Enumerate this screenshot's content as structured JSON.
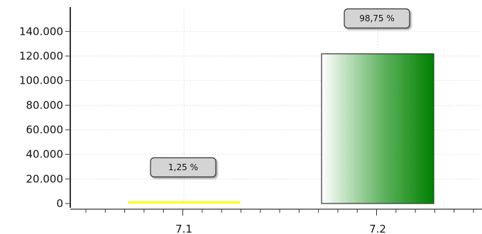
{
  "chart_data": {
    "type": "bar",
    "categories": [
      "7.1",
      "7.2"
    ],
    "values": [
      1530,
      121800
    ],
    "percent_labels": [
      "1,25 %",
      "98,75 %"
    ],
    "bar_colors": [
      "#ffff00",
      "#0a7a0a"
    ],
    "y_ticks": [
      "0",
      "20.000",
      "40.000",
      "60.000",
      "80.000",
      "100.000",
      "120.000",
      "140.000"
    ],
    "ylim": [
      0,
      150000
    ],
    "grid": true,
    "title": "",
    "xlabel": "",
    "ylabel": ""
  }
}
